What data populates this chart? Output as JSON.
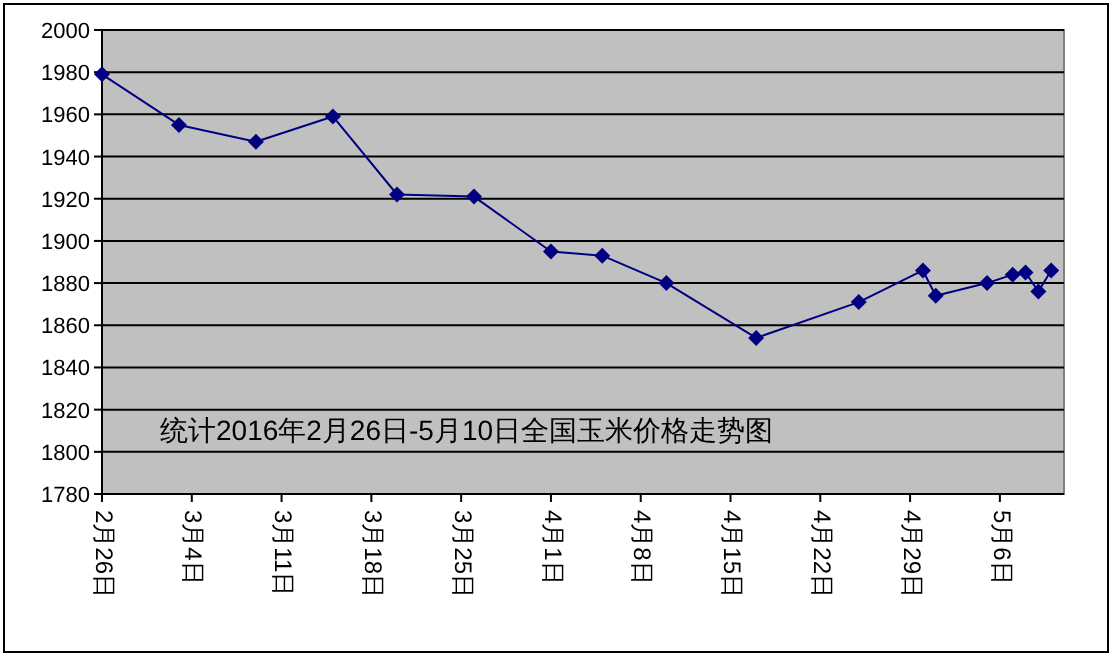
{
  "chart_data": {
    "type": "line",
    "title": "统计2016年2月26日-5月10日全国玉米价格走势图",
    "x": [
      "2016-02-26",
      "2016-03-03",
      "2016-03-09",
      "2016-03-15",
      "2016-03-20",
      "2016-03-26",
      "2016-04-01",
      "2016-04-05",
      "2016-04-10",
      "2016-04-17",
      "2016-04-25",
      "2016-04-30",
      "2016-05-01",
      "2016-05-05",
      "2016-05-07",
      "2016-05-08",
      "2016-05-09",
      "2016-05-10"
    ],
    "series": [
      {
        "color": "#000080",
        "values": [
          1979,
          1955,
          1947,
          1959,
          1922,
          1921,
          1895,
          1893,
          1880,
          1854,
          1871,
          1886,
          1874,
          1880,
          1884,
          1885,
          1876,
          1886
        ]
      }
    ],
    "xlim": [
      "2016-02-26",
      "2016-05-11"
    ],
    "xticks": [
      {
        "value": "2016-02-26",
        "label": "2月26日"
      },
      {
        "value": "2016-03-04",
        "label": "3月4日"
      },
      {
        "value": "2016-03-11",
        "label": "3月11日"
      },
      {
        "value": "2016-03-18",
        "label": "3月18日"
      },
      {
        "value": "2016-03-25",
        "label": "3月25日"
      },
      {
        "value": "2016-04-01",
        "label": "4月1日"
      },
      {
        "value": "2016-04-08",
        "label": "4月8日"
      },
      {
        "value": "2016-04-15",
        "label": "4月15日"
      },
      {
        "value": "2016-04-22",
        "label": "4月22日"
      },
      {
        "value": "2016-04-29",
        "label": "4月29日"
      },
      {
        "value": "2016-05-06",
        "label": "5月6日"
      }
    ],
    "ylim": [
      1780,
      2000
    ],
    "yticks": [
      1780,
      1800,
      1820,
      1840,
      1860,
      1880,
      1900,
      1920,
      1940,
      1960,
      1980,
      2000
    ],
    "grid": "y",
    "marker": "diamond",
    "line_style": "solid"
  }
}
